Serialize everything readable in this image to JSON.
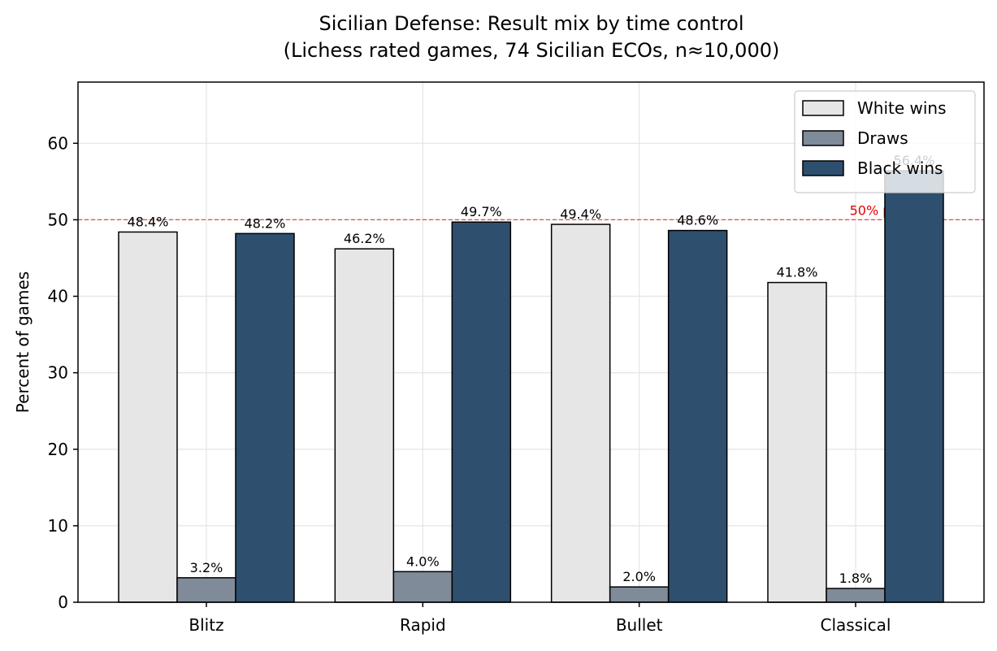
{
  "chart_data": {
    "type": "bar",
    "title_line1": "Sicilian Defense: Result mix by time control",
    "title_line2": "(Lichess rated games, 74 Sicilian ECOs, n≈10,000)",
    "xlabel": "",
    "ylabel": "Percent of games",
    "ylim": [
      0,
      68
    ],
    "yticks": [
      0,
      10,
      20,
      30,
      40,
      50,
      60
    ],
    "grid": true,
    "legend_position": "top-right",
    "categories": [
      "Blitz",
      "Rapid",
      "Bullet",
      "Classical"
    ],
    "series": [
      {
        "name": "White wins",
        "color": "#e6e6e6",
        "values": [
          48.4,
          46.2,
          49.4,
          41.8
        ],
        "labels": [
          "48.4%",
          "46.2%",
          "49.4%",
          "41.8%"
        ]
      },
      {
        "name": "Draws",
        "color": "#808b99",
        "values": [
          3.2,
          4.0,
          2.0,
          1.8
        ],
        "labels": [
          "3.2%",
          "4.0%",
          "2.0%",
          "1.8%"
        ]
      },
      {
        "name": "Black wins",
        "color": "#2e4f6e",
        "values": [
          48.2,
          49.7,
          48.6,
          56.4
        ],
        "labels": [
          "48.2%",
          "49.7%",
          "48.6%",
          "56.4%"
        ]
      }
    ],
    "reference_line": {
      "value": 50,
      "label": "50% parity",
      "color": "#e03030"
    }
  }
}
